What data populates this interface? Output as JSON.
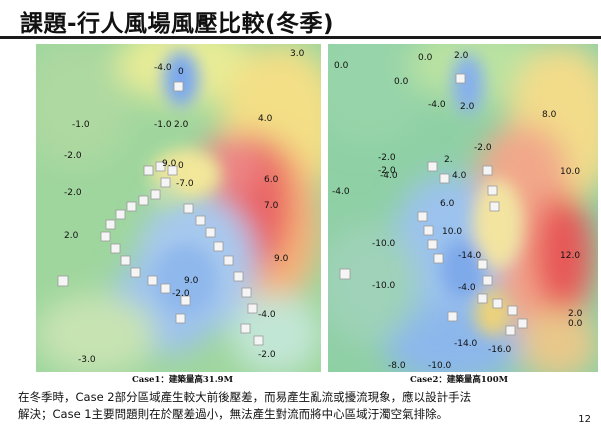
{
  "slide": {
    "title": "課題-行人風場風壓比較(冬季)",
    "page_number": "12"
  },
  "panels": [
    {
      "caption": "Case1：建築量高31.9M",
      "labels": [
        {
          "text": "-4.0"
        },
        {
          "text": "0"
        },
        {
          "text": "3.0"
        },
        {
          "text": "-1.0"
        },
        {
          "text": "-1.0"
        },
        {
          "text": "2.0"
        },
        {
          "text": "4.0"
        },
        {
          "text": "-2.0"
        },
        {
          "text": "9.0"
        },
        {
          "text": "0"
        },
        {
          "text": "-7.0"
        },
        {
          "text": "-2.0"
        },
        {
          "text": "6.0"
        },
        {
          "text": "7.0"
        },
        {
          "text": "2.0"
        },
        {
          "text": "9.0"
        },
        {
          "text": "9.0"
        },
        {
          "text": "-2.0"
        },
        {
          "text": "-4.0"
        },
        {
          "text": "-3.0"
        },
        {
          "text": "-2.0"
        }
      ]
    },
    {
      "caption": "Case2：建築量高100M",
      "labels": [
        {
          "text": "0.0"
        },
        {
          "text": "0.0"
        },
        {
          "text": "2.0"
        },
        {
          "text": "0.0"
        },
        {
          "text": "-4.0"
        },
        {
          "text": "2.0"
        },
        {
          "text": "8.0"
        },
        {
          "text": "-2.0"
        },
        {
          "text": "-2.0"
        },
        {
          "text": "-4.0"
        },
        {
          "text": "2."
        },
        {
          "text": "-2.0"
        },
        {
          "text": "4.0"
        },
        {
          "text": "10.0"
        },
        {
          "text": "-4.0"
        },
        {
          "text": "6.0"
        },
        {
          "text": "-10.0"
        },
        {
          "text": "10.0"
        },
        {
          "text": "-14.0"
        },
        {
          "text": "12.0"
        },
        {
          "text": "-10.0"
        },
        {
          "text": "-4.0"
        },
        {
          "text": "2.0"
        },
        {
          "text": "0.0"
        },
        {
          "text": "-14.0"
        },
        {
          "text": "-16.0"
        },
        {
          "text": "-8.0"
        },
        {
          "text": "-10.0"
        }
      ]
    }
  ],
  "note": {
    "line1": "在冬季時，Case 2部分區域產生較大前後壓差，而易產生亂流或擾流現象，應以設計手法",
    "line2": "解決；Case 1主要問題則在於壓差過小，無法產生對流而將中心區域汙濁空氣排除。"
  },
  "colors": {
    "high_pressure": "#e85a5a",
    "mid_pressure": "#f3e08a",
    "neutral": "#8fd19a",
    "low_pressure": "#9ec3ee",
    "title_rule": "#1a1a1a"
  }
}
